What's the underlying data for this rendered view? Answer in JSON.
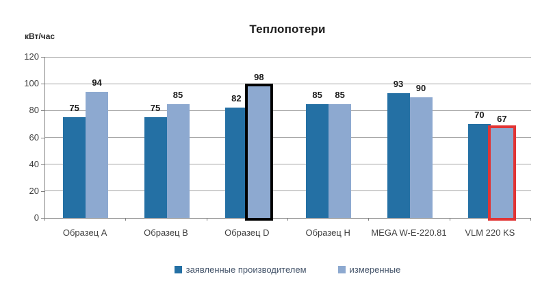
{
  "chart_data": {
    "type": "bar",
    "title": "Теплопотери",
    "ylabel": "кВт/час",
    "xlabel": "",
    "categories": [
      "Образец A",
      "Образец B",
      "Образец D",
      "Образец H",
      "MEGA W-E-220.81",
      "VLM 220 KS"
    ],
    "series": [
      {
        "name": "заявленные производителем",
        "color": "#2470A4",
        "values": [
          75,
          75,
          82,
          85,
          93,
          70
        ]
      },
      {
        "name": "измеренные",
        "color": "#8DA9D0",
        "values": [
          94,
          85,
          98,
          85,
          90,
          67
        ]
      }
    ],
    "ylim": [
      0,
      120
    ],
    "yticks": [
      0,
      20,
      40,
      60,
      80,
      100,
      120
    ],
    "grid": true,
    "legend_position": "bottom",
    "value_labels": true,
    "highlights": [
      {
        "category": "Образец D",
        "series": "измеренные",
        "outline_color": "#000000"
      },
      {
        "category": "VLM 220 KS",
        "series": "измеренные",
        "outline_color": "#E13434"
      }
    ],
    "style": {
      "background": "#FFFFFF",
      "grid_color": "#A3A3A3",
      "axis_color": "#808080",
      "tick_label_color": "#3F3F3F",
      "value_label_color": "#1A1A1A",
      "legend_text_color": "#44546A"
    }
  }
}
